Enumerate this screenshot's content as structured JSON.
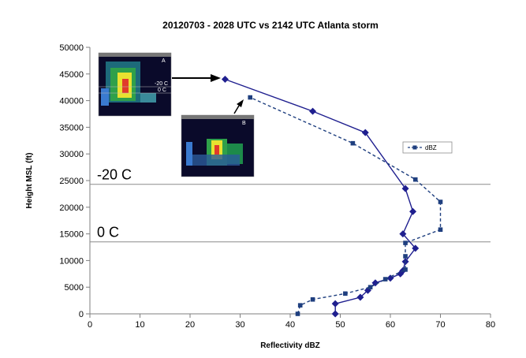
{
  "chart_data": {
    "type": "line",
    "title": "20120703  - 2028 UTC  vs 2142 UTC Atlanta storm",
    "xlabel": "Reflectivity dBZ",
    "ylabel": "Height MSL (ft)",
    "xlim": [
      0,
      80
    ],
    "ylim": [
      0,
      50000
    ],
    "x_ticks": [
      0,
      10,
      20,
      30,
      40,
      50,
      60,
      70,
      80
    ],
    "y_ticks": [
      0,
      5000,
      10000,
      15000,
      20000,
      25000,
      30000,
      35000,
      40000,
      45000,
      50000
    ],
    "grid": false,
    "legend": {
      "position": "right",
      "entries": [
        "dBZ"
      ]
    },
    "reference_lines": [
      {
        "label": "-20 C",
        "y": 24300
      },
      {
        "label": "0 C",
        "y": 13500
      }
    ],
    "series": [
      {
        "style": "solid",
        "color": "#1f1f8f",
        "marker": "diamond",
        "points": [
          [
            49,
            0
          ],
          [
            49,
            1900
          ],
          [
            54,
            3100
          ],
          [
            55.5,
            4400
          ],
          [
            57,
            5800
          ],
          [
            60,
            6700
          ],
          [
            62,
            7500
          ],
          [
            62.5,
            8100
          ],
          [
            63,
            9800
          ],
          [
            65,
            12300
          ],
          [
            62.5,
            15000
          ],
          [
            64.5,
            19200
          ],
          [
            63,
            23500
          ],
          [
            55,
            34000
          ],
          [
            44.5,
            38000
          ],
          [
            27,
            44000
          ]
        ]
      },
      {
        "style": "dashed",
        "color": "#1f3f7f",
        "marker": "square",
        "name": "dBZ",
        "points": [
          [
            41.5,
            0
          ],
          [
            42,
            1600
          ],
          [
            44.5,
            2700
          ],
          [
            51,
            3800
          ],
          [
            56,
            5000
          ],
          [
            59,
            6500
          ],
          [
            63,
            8300
          ],
          [
            63,
            10800
          ],
          [
            63,
            13300
          ],
          [
            70,
            15800
          ],
          [
            70,
            21000
          ],
          [
            65,
            25200
          ],
          [
            52.5,
            32000
          ],
          [
            32,
            40600
          ]
        ]
      }
    ]
  },
  "insets": [
    {
      "corner_text": "A",
      "labels": [
        "-20 C",
        "0 C"
      ]
    },
    {
      "corner_text": "B",
      "labels": []
    }
  ],
  "colors": {
    "series_solid": "#1f1f8f",
    "series_dashed": "#1f3f7f",
    "axis": "#7f7f7f",
    "ref_line": "#8c8c8c"
  }
}
